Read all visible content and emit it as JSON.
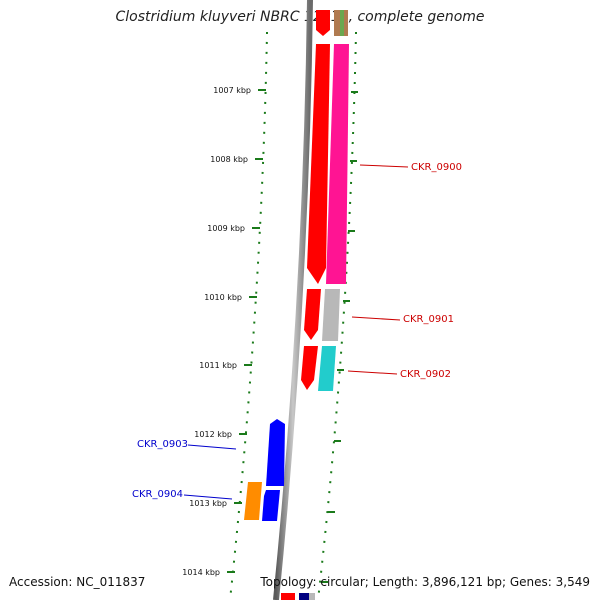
{
  "title": "Clostridium kluyveri NBRC 12016, complete genome",
  "footer": {
    "accession": "Accession: NC_011837",
    "topology": "Topology: circular; Length: 3,896,121 bp; Genes: 3,549"
  },
  "ticks": [
    {
      "label": "1007 kbp"
    },
    {
      "label": "1008 kbp"
    },
    {
      "label": "1009 kbp"
    },
    {
      "label": "1010 kbp"
    },
    {
      "label": "1011 kbp"
    },
    {
      "label": "1012 kbp"
    },
    {
      "label": "1013 kbp"
    },
    {
      "label": "1014 kbp"
    }
  ],
  "gene_labels": [
    {
      "text": "CKR_0900",
      "color": "#cc0000"
    },
    {
      "text": "CKR_0901",
      "color": "#cc0000"
    },
    {
      "text": "CKR_0902",
      "color": "#cc0000"
    },
    {
      "text": "CKR_0903",
      "color": "#0000cc"
    },
    {
      "text": "CKR_0904",
      "color": "#0000cc"
    }
  ],
  "colors": {
    "backbone": "#8c8c8c",
    "tick": "#1a7a1a",
    "red_gene": "#ff0000",
    "magenta_gene": "#ff1493",
    "gray_gene": "#b8b8b8",
    "cyan_gene": "#22cccc",
    "blue_gene": "#0000ff",
    "orange_gene": "#ff8c00"
  }
}
